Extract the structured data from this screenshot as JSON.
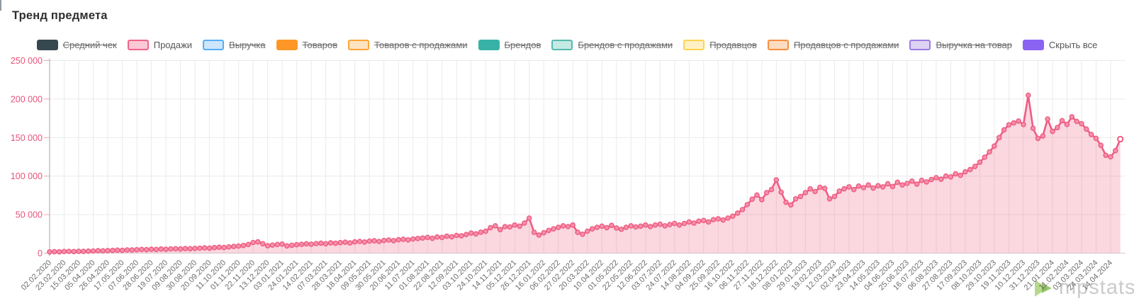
{
  "title": "Тренд предмета",
  "legend": {
    "items": [
      {
        "label": "Средний чек",
        "struck": true,
        "variant": "scribble",
        "fill": "#37474f",
        "border": "#37474f"
      },
      {
        "label": "Продажи",
        "struck": false,
        "variant": "outline",
        "fill": "#f9c9d6",
        "border": "#f06488"
      },
      {
        "label": "Выручка",
        "struck": true,
        "variant": "outline",
        "fill": "#cde6fb",
        "border": "#57aef6"
      },
      {
        "label": "Товаров",
        "struck": true,
        "variant": "scribble",
        "fill": "#fe9726",
        "border": "#fe9726"
      },
      {
        "label": "Товаров с продажами",
        "struck": true,
        "variant": "outline",
        "fill": "#fee3c1",
        "border": "#fea437"
      },
      {
        "label": "Брендов",
        "struck": true,
        "variant": "scribble",
        "fill": "#38b2a7",
        "border": "#38b2a7"
      },
      {
        "label": "Брендов с продажами",
        "struck": true,
        "variant": "outline",
        "fill": "#c5e9e5",
        "border": "#55b9af"
      },
      {
        "label": "Продавцов",
        "struck": true,
        "variant": "outline",
        "fill": "#fff1c5",
        "border": "#fed34f"
      },
      {
        "label": "Продавцов с продажами",
        "struck": true,
        "variant": "outline",
        "fill": "#fcdcc0",
        "border": "#f78f40"
      },
      {
        "label": "Выручка на товар",
        "struck": true,
        "variant": "outline",
        "fill": "#ded3f3",
        "border": "#9c7be1"
      },
      {
        "label": "Скрыть все",
        "struck": false,
        "variant": "solid",
        "fill": "#8b63f3",
        "border": "#8b63f3"
      }
    ]
  },
  "watermark": {
    "text": "mpstats",
    "logo_color_light": "#aed581",
    "logo_color_dark": "#7cb342"
  },
  "chart_data": {
    "type": "area",
    "series_name": "Продажи",
    "legend_position": "top",
    "grid": true,
    "line_color": "#ee5c83",
    "marker_fill": "#f490a8",
    "area_fill": "rgba(242,106,141,0.27)",
    "axis_color": "#b3b3b3",
    "grid_color": "#eaeaea",
    "y_label_color": "#e9537b",
    "x_label_color": "#6d6d6d",
    "ylim": [
      0,
      250000
    ],
    "y_ticks": [
      0,
      50000,
      100000,
      150000,
      200000,
      250000
    ],
    "y_tick_labels": [
      "0",
      "50 000",
      "100 000",
      "150 000",
      "200 000",
      "250 000"
    ],
    "points_per_tick": 3,
    "x_tick_labels": [
      "02.02.2020",
      "23.02.2020",
      "15.03.2020",
      "05.04.2020",
      "26.04.2020",
      "17.05.2020",
      "07.06.2020",
      "28.06.2020",
      "19.07.2020",
      "09.08.2020",
      "30.08.2020",
      "20.09.2020",
      "11.10.2020",
      "01.11.2020",
      "22.11.2020",
      "13.12.2020",
      "03.01.2021",
      "24.01.2021",
      "14.02.2021",
      "07.03.2021",
      "28.03.2021",
      "18.04.2021",
      "09.05.2021",
      "30.05.2021",
      "20.06.2021",
      "11.07.2021",
      "01.08.2021",
      "22.08.2021",
      "12.09.2021",
      "03.10.2021",
      "24.10.2021",
      "14.11.2021",
      "05.12.2021",
      "26.12.2021",
      "16.01.2022",
      "06.02.2022",
      "27.02.2022",
      "20.03.2022",
      "10.04.2022",
      "01.05.2022",
      "22.05.2022",
      "12.06.2022",
      "03.07.2022",
      "24.07.2022",
      "14.08.2022",
      "04.09.2022",
      "25.09.2022",
      "16.10.2022",
      "06.11.2022",
      "27.11.2022",
      "18.12.2022",
      "08.01.2023",
      "29.01.2023",
      "19.02.2023",
      "12.03.2023",
      "02.04.2023",
      "23.04.2023",
      "14.05.2023",
      "04.06.2023",
      "25.06.2023",
      "16.07.2023",
      "06.08.2023",
      "27.08.2023",
      "17.09.2023",
      "08.10.2023",
      "29.10.2023",
      "19.11.2023",
      "10.12.2023",
      "31.12.2023",
      "21.01.2024",
      "11.02.2024",
      "03.03.2024",
      "24.03.2024",
      "14.04.2024"
    ],
    "values": [
      1600,
      1900,
      1700,
      2100,
      2300,
      2000,
      2400,
      2200,
      2600,
      2800,
      3100,
      2900,
      3300,
      3500,
      3900,
      3600,
      4100,
      4000,
      4400,
      4800,
      4500,
      5000,
      4800,
      5300,
      5000,
      5500,
      5700,
      5400,
      5900,
      5700,
      6200,
      6400,
      6800,
      6500,
      7200,
      7600,
      7300,
      8100,
      8600,
      9200,
      9900,
      11200,
      13800,
      14600,
      12200,
      9600,
      10400,
      11200,
      11800,
      9400,
      10200,
      10900,
      11400,
      12100,
      11600,
      12400,
      13000,
      12200,
      13400,
      12800,
      13600,
      14200,
      13200,
      14600,
      15200,
      14400,
      15600,
      16000,
      15200,
      16400,
      17000,
      16200,
      17400,
      18000,
      17200,
      18400,
      19000,
      19600,
      20400,
      19200,
      21000,
      20400,
      22000,
      21200,
      23000,
      22400,
      24200,
      26000,
      25000,
      27200,
      28400,
      33000,
      35500,
      30500,
      34500,
      34000,
      36500,
      35000,
      39000,
      45500,
      27000,
      23500,
      26500,
      29500,
      31500,
      33500,
      35500,
      34500,
      36500,
      27000,
      24500,
      28500,
      31500,
      33500,
      35000,
      33000,
      36000,
      32500,
      31000,
      33500,
      35500,
      34000,
      35000,
      36500,
      34500,
      36500,
      37500,
      35500,
      37000,
      38500,
      36500,
      38500,
      40500,
      39000,
      41500,
      42500,
      40500,
      43500,
      44500,
      43000,
      45500,
      48000,
      52000,
      56500,
      63000,
      70000,
      75500,
      69500,
      78500,
      82500,
      95000,
      79000,
      66000,
      62500,
      70500,
      73500,
      78500,
      83500,
      80000,
      85500,
      84000,
      70500,
      73500,
      80500,
      83500,
      86000,
      82500,
      87000,
      85000,
      88500,
      84500,
      87500,
      86000,
      90000,
      86500,
      92000,
      88500,
      90500,
      93500,
      89500,
      94500,
      92500,
      95500,
      98000,
      96000,
      100000,
      99000,
      103000,
      101000,
      105500,
      108500,
      112500,
      118000,
      124500,
      131500,
      139000,
      150000,
      160000,
      166500,
      169000,
      171500,
      167000,
      205000,
      162000,
      149000,
      152000,
      174000,
      158000,
      163000,
      172000,
      167000,
      177000,
      171000,
      168000,
      161000,
      154000,
      149000,
      140000,
      127000,
      125000,
      133000,
      148000
    ],
    "last_point_open": true
  }
}
